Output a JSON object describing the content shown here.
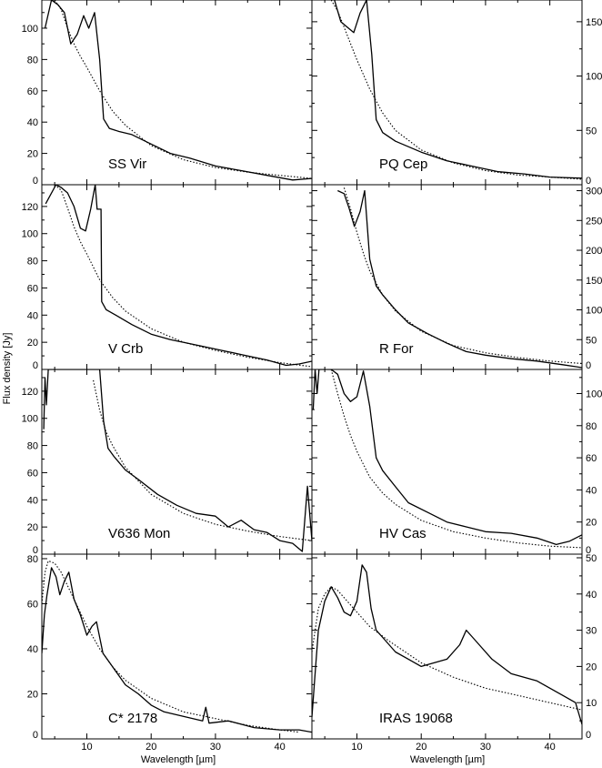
{
  "figure": {
    "xlabel": "Wavelength [µm]",
    "ylabel": "Flux density [Jy]"
  },
  "chart_data": [
    {
      "type": "line",
      "title": "SS Vir",
      "xlim": [
        3,
        45
      ],
      "ylim": [
        0,
        118
      ],
      "xticks": [
        10,
        20,
        30,
        40
      ],
      "yticks": [
        0,
        20,
        40,
        60,
        80,
        100
      ],
      "yaxis_side": "left",
      "series": [
        {
          "x": [
            3.5,
            4.5,
            5.5,
            6.5,
            7.5,
            8.5,
            9.5,
            10.3,
            11.2,
            12.0,
            12.6,
            13.5,
            15,
            17,
            20,
            23,
            26,
            30,
            34,
            38,
            42,
            45
          ],
          "y": [
            100,
            118,
            115,
            110,
            90,
            96,
            108,
            100,
            110,
            80,
            42,
            36,
            34,
            32,
            26,
            20,
            17,
            12,
            9,
            6,
            3,
            4
          ]
        },
        {
          "x": [
            5,
            6,
            7,
            8,
            9,
            10,
            12,
            14,
            16,
            20,
            25,
            30,
            35,
            40,
            45
          ],
          "y": [
            118,
            112,
            100,
            90,
            82,
            75,
            60,
            47,
            38,
            25,
            16,
            11,
            8,
            6,
            4
          ]
        }
      ]
    },
    {
      "type": "line",
      "title": "PQ Cep",
      "xlim": [
        3,
        45
      ],
      "ylim": [
        0,
        170
      ],
      "xticks": [
        10,
        20,
        30,
        40
      ],
      "yticks": [
        0,
        50,
        100,
        150
      ],
      "yaxis_side": "right",
      "series": [
        {
          "x": [
            6.5,
            7.5,
            8.5,
            9.5,
            10.5,
            11.5,
            12.3,
            13,
            14,
            16,
            20,
            24,
            28,
            32,
            36,
            40,
            45
          ],
          "y": [
            170,
            150,
            145,
            140,
            158,
            170,
            120,
            60,
            48,
            40,
            30,
            22,
            17,
            12,
            10,
            7,
            6
          ]
        },
        {
          "x": [
            6,
            7,
            8,
            9,
            10,
            12,
            14,
            16,
            20,
            25,
            30,
            35,
            40,
            45
          ],
          "y": [
            170,
            160,
            145,
            130,
            115,
            88,
            66,
            50,
            32,
            20,
            13,
            9,
            7,
            5
          ]
        }
      ]
    },
    {
      "type": "line",
      "title": "V Crb",
      "xlim": [
        3,
        45
      ],
      "ylim": [
        0,
        136
      ],
      "xticks": [
        10,
        20,
        30,
        40
      ],
      "yticks": [
        0,
        20,
        40,
        60,
        80,
        100,
        120
      ],
      "yaxis_side": "left",
      "series": [
        {
          "x": [
            3.6,
            5.2,
            6,
            7,
            8,
            9,
            9.8,
            10.6,
            11.3,
            11.6,
            12.2,
            12.3,
            13,
            14.5,
            17,
            20,
            23,
            26,
            30,
            34,
            38,
            41,
            43,
            45
          ],
          "y": [
            122,
            136,
            134,
            130,
            120,
            104,
            102,
            118,
            136,
            118,
            118,
            50,
            44,
            40,
            33,
            26,
            22,
            19,
            15,
            11,
            7,
            3,
            4,
            6
          ]
        },
        {
          "x": [
            5,
            6,
            7,
            8,
            9,
            10,
            12,
            14,
            16,
            20,
            25,
            30,
            35,
            40,
            45
          ],
          "y": [
            136,
            132,
            119,
            105,
            94,
            85,
            66,
            53,
            43,
            30,
            20,
            14,
            9,
            5,
            2
          ]
        }
      ]
    },
    {
      "type": "line",
      "title": "R For",
      "xlim": [
        3,
        45
      ],
      "ylim": [
        0,
        310
      ],
      "xticks": [
        10,
        20,
        30,
        40
      ],
      "yticks": [
        0,
        50,
        100,
        150,
        200,
        250,
        300
      ],
      "yaxis_side": "right",
      "series": [
        {
          "x": [
            7,
            8,
            8.8,
            9.6,
            10.5,
            11.2,
            12,
            13,
            14,
            16,
            18,
            21,
            24,
            27,
            30,
            34,
            38,
            42,
            45
          ],
          "y": [
            300,
            295,
            270,
            240,
            265,
            300,
            185,
            140,
            125,
            100,
            78,
            60,
            44,
            30,
            24,
            18,
            14,
            8,
            3
          ]
        },
        {
          "x": [
            8,
            9,
            10,
            11,
            12,
            14,
            16,
            20,
            25,
            30,
            35,
            40,
            45
          ],
          "y": [
            305,
            270,
            230,
            195,
            165,
            125,
            98,
            64,
            40,
            28,
            20,
            14,
            10
          ]
        }
      ]
    },
    {
      "type": "line",
      "title": "V636 Mon",
      "xlim": [
        3,
        45
      ],
      "ylim": [
        0,
        136
      ],
      "xticks": [
        10,
        20,
        30,
        40
      ],
      "yticks": [
        0,
        20,
        40,
        60,
        80,
        100,
        120
      ],
      "yaxis_side": "left",
      "series": [
        {
          "x": [
            3.3,
            3.5,
            3.7,
            4,
            8,
            12,
            12.6,
            13.3,
            14.2,
            16,
            18,
            21,
            24,
            27,
            30,
            32,
            34,
            36,
            38,
            40,
            42,
            43.5,
            44.3,
            45
          ],
          "y": [
            92,
            130,
            110,
            136,
            136,
            136,
            98,
            78,
            72,
            62,
            55,
            44,
            36,
            30,
            28,
            20,
            25,
            18,
            16,
            10,
            8,
            2,
            50,
            10
          ]
        },
        {
          "x": [
            11,
            12,
            13,
            14,
            16,
            20,
            25,
            30,
            35,
            40,
            45
          ],
          "y": [
            128,
            106,
            90,
            80,
            64,
            44,
            30,
            22,
            17,
            13,
            10
          ]
        }
      ]
    },
    {
      "type": "line",
      "title": "HV Cas",
      "xlim": [
        3,
        45
      ],
      "ylim": [
        0,
        115
      ],
      "xticks": [
        10,
        20,
        30,
        40
      ],
      "yticks": [
        0,
        20,
        40,
        60,
        80,
        100
      ],
      "yaxis_side": "right",
      "series": [
        {
          "x": [
            3.2,
            3.5,
            3.8,
            4.1,
            6,
            7,
            8,
            9,
            10,
            11,
            12,
            13,
            14,
            16,
            18,
            21,
            24,
            27,
            30,
            34,
            38,
            41,
            43,
            45
          ],
          "y": [
            90,
            115,
            100,
            115,
            115,
            112,
            100,
            95,
            98,
            114,
            92,
            60,
            52,
            42,
            32,
            26,
            20,
            17,
            14,
            13,
            10,
            6,
            8,
            12
          ]
        },
        {
          "x": [
            6,
            7,
            8,
            9,
            10,
            12,
            14,
            16,
            20,
            25,
            30,
            35,
            40,
            45
          ],
          "y": [
            115,
            100,
            86,
            74,
            64,
            48,
            38,
            31,
            21,
            14,
            10,
            7,
            5,
            4
          ]
        }
      ]
    },
    {
      "type": "line",
      "title": "C* 2178",
      "xlim": [
        3,
        45
      ],
      "ylim": [
        0,
        82
      ],
      "xticks": [
        10,
        20,
        30,
        40
      ],
      "yticks": [
        0,
        20,
        40,
        60,
        80
      ],
      "yaxis_side": "left",
      "series": [
        {
          "x": [
            3,
            3.4,
            3.8,
            4.5,
            5.2,
            5.8,
            6.5,
            7.2,
            8,
            9,
            10,
            10.8,
            11.5,
            12.5,
            14,
            16,
            18,
            20,
            22,
            25,
            28,
            28.5,
            29,
            32,
            36,
            40,
            43,
            45
          ],
          "y": [
            38,
            55,
            64,
            76,
            72,
            64,
            70,
            74,
            62,
            55,
            46,
            50,
            52,
            38,
            32,
            24,
            20,
            15,
            12,
            10,
            8,
            14,
            7,
            8,
            5,
            4,
            4,
            3
          ]
        },
        {
          "x": [
            3,
            3.5,
            4,
            5,
            6,
            7,
            8,
            10,
            12,
            14,
            16,
            20,
            25,
            30,
            35,
            40,
            43
          ],
          "y": [
            60,
            74,
            79,
            78,
            74,
            68,
            62,
            50,
            40,
            32,
            26,
            18,
            12,
            9,
            6,
            4,
            3
          ]
        }
      ]
    },
    {
      "type": "line",
      "title": "IRAS 19068",
      "xlim": [
        3,
        45
      ],
      "ylim": [
        0,
        51
      ],
      "xticks": [
        10,
        20,
        30,
        40
      ],
      "yticks": [
        0,
        10,
        20,
        30,
        40,
        50
      ],
      "yaxis_side": "right",
      "series": [
        {
          "x": [
            3,
            3.5,
            4,
            5,
            6,
            7,
            8,
            9,
            10,
            10.8,
            11.5,
            12.2,
            13,
            14,
            16,
            18,
            20,
            22,
            24,
            26,
            27,
            28,
            29,
            31,
            34,
            38,
            42,
            44,
            45
          ],
          "y": [
            6,
            18,
            30,
            38,
            42,
            39,
            35,
            34,
            38,
            48,
            46,
            36,
            30,
            28,
            24,
            22,
            20,
            21,
            22,
            26,
            30,
            28,
            26,
            22,
            18,
            16,
            12,
            10,
            4
          ]
        },
        {
          "x": [
            3,
            4,
            5,
            6,
            7,
            8,
            10,
            12,
            15,
            20,
            25,
            30,
            35,
            40,
            45
          ],
          "y": [
            24,
            36,
            40,
            42,
            41,
            39,
            35,
            31,
            27,
            21,
            17,
            14,
            12,
            10,
            8
          ]
        }
      ]
    }
  ]
}
